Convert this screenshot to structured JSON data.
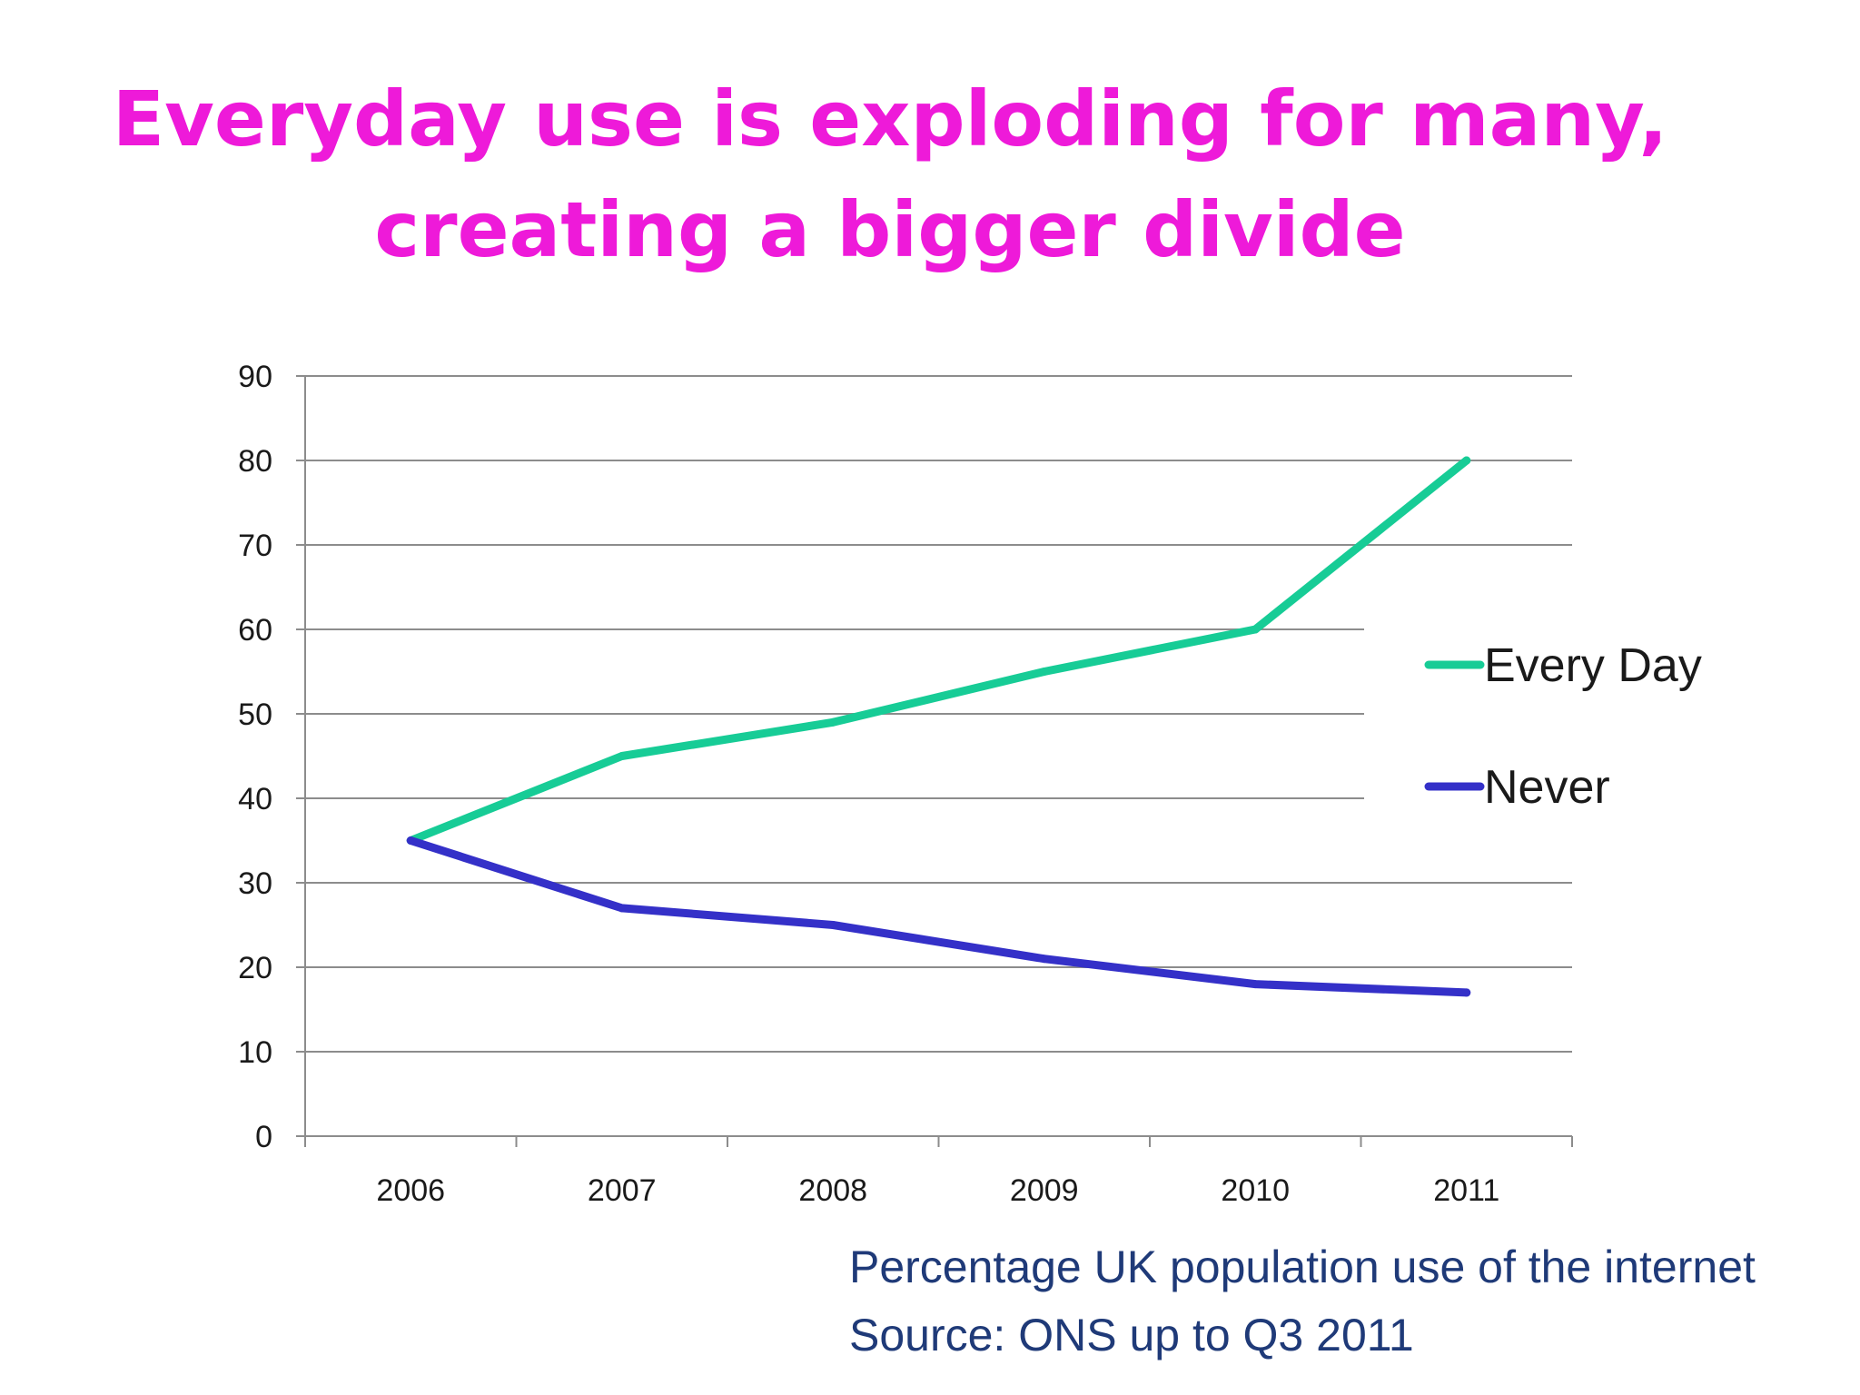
{
  "title": {
    "line1": "Everyday use is exploding for many,",
    "line2": "creating a bigger divide"
  },
  "caption": {
    "line1": "Percentage UK population use of the internet",
    "line2": "Source: ONS up to Q3 2011"
  },
  "colors": {
    "title": "#ee1ad9",
    "every_day": "#17cc96",
    "never": "#3430c8",
    "grid": "#8c8c8c",
    "caption": "#1f3a78"
  },
  "chart_data": {
    "type": "line",
    "categories": [
      "2006",
      "2007",
      "2008",
      "2009",
      "2010",
      "2011"
    ],
    "series": [
      {
        "name": "Every Day",
        "values": [
          35,
          45,
          49,
          55,
          60,
          80
        ]
      },
      {
        "name": "Never",
        "values": [
          35,
          27,
          25,
          21,
          18,
          17
        ]
      }
    ],
    "yticks": [
      "0",
      "10",
      "20",
      "30",
      "40",
      "50",
      "60",
      "70",
      "80",
      "90"
    ],
    "ylim": [
      0,
      90
    ],
    "grid": true,
    "legend_position": "right"
  }
}
